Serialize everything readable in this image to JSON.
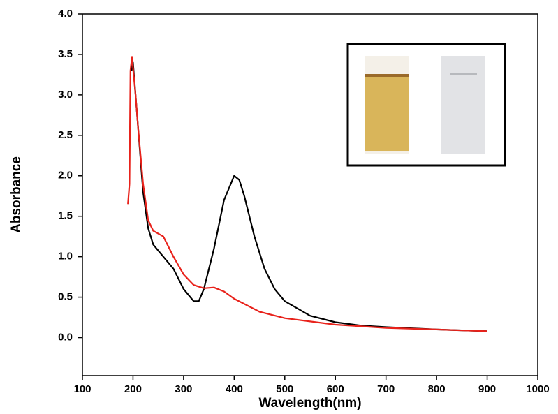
{
  "chart_data": {
    "type": "line",
    "x_label": "Wavelength(nm)",
    "y_label": "Absorbance",
    "xlim": [
      100,
      1000
    ],
    "ylim": [
      -0.47,
      4.0
    ],
    "xticks": [
      100,
      200,
      300,
      400,
      500,
      600,
      700,
      800,
      900,
      1000
    ],
    "yticks": [
      {
        "value": 0,
        "label": "0.0"
      },
      {
        "value": 0.5,
        "label": "0.5"
      },
      {
        "value": 1,
        "label": "1.0"
      },
      {
        "value": 1.5,
        "label": "1.5"
      },
      {
        "value": 2,
        "label": "2.0"
      },
      {
        "value": 2.5,
        "label": "2.5"
      },
      {
        "value": 3,
        "label": "3.0"
      },
      {
        "value": 3.5,
        "label": "3.5"
      },
      {
        "value": 4,
        "label": "4.0"
      }
    ],
    "series": [
      {
        "color": "#000000",
        "x": [
          197,
          200,
          205,
          210,
          220,
          230,
          240,
          260,
          280,
          300,
          320,
          330,
          340,
          360,
          380,
          400,
          410,
          420,
          440,
          460,
          480,
          500,
          550,
          600,
          650,
          700,
          800,
          900
        ],
        "values": [
          3.3,
          3.4,
          3.0,
          2.6,
          1.8,
          1.35,
          1.15,
          1.0,
          0.85,
          0.6,
          0.45,
          0.45,
          0.6,
          1.1,
          1.7,
          2.0,
          1.95,
          1.75,
          1.25,
          0.85,
          0.6,
          0.45,
          0.27,
          0.19,
          0.15,
          0.13,
          0.1,
          0.08
        ]
      },
      {
        "color": "#e8221b",
        "x": [
          190,
          193,
          195,
          198,
          205,
          210,
          220,
          230,
          240,
          260,
          280,
          300,
          320,
          340,
          360,
          380,
          400,
          450,
          500,
          600,
          700,
          800,
          900
        ],
        "values": [
          1.65,
          1.9,
          3.3,
          3.47,
          3.0,
          2.6,
          1.9,
          1.45,
          1.32,
          1.25,
          1.0,
          0.78,
          0.65,
          0.61,
          0.62,
          0.57,
          0.48,
          0.32,
          0.24,
          0.16,
          0.12,
          0.1,
          0.08
        ]
      }
    ]
  }
}
